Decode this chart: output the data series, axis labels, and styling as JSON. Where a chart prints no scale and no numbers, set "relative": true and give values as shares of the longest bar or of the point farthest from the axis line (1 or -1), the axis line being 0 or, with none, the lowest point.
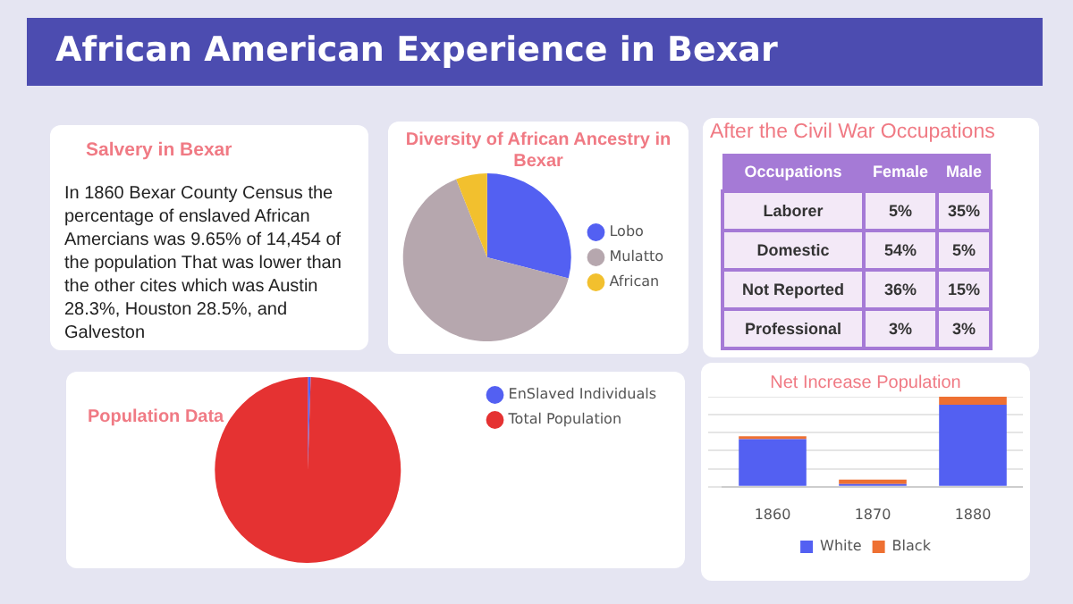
{
  "chart_data": [
    {
      "type": "other",
      "title": "African American Experience in Bexar"
    },
    {
      "type": "other",
      "title": "Salvery in Bexar",
      "annotations": [
        "In 1860 Bexar County Census the percentage of enslaved African Amercians was 9.65% of 14,454 of the population That was lower than the other cites which was Austin 28.3%, Houston 28.5%, and Galveston"
      ]
    },
    {
      "type": "pie",
      "title": "Diversity of African Ancestry in Bexar",
      "categories": [
        "Lobo",
        "Mulatto",
        "African"
      ],
      "values": [
        29,
        65,
        6
      ],
      "colors": [
        "#5360f2",
        "#b6a7ae",
        "#f2c02e"
      ],
      "legend": "right"
    },
    {
      "type": "other",
      "title": "After the Civil War Occupations",
      "xlabel": "Occupations",
      "categories": [
        "Laborer",
        "Domestic",
        "Not Reported",
        "Professional"
      ],
      "series": [
        {
          "name": "Female",
          "values": [
            5,
            54,
            36,
            3
          ],
          "value_labels": [
            "5%",
            "54%",
            "36%",
            "3%"
          ]
        },
        {
          "name": "Male",
          "values": [
            35,
            5,
            15,
            3
          ],
          "value_labels": [
            "35%",
            "5%",
            "15%",
            "3%"
          ]
        }
      ]
    },
    {
      "type": "pie",
      "title": "Population Data",
      "categories": [
        "EnSlaved Individuals",
        "Total Population"
      ],
      "values": [
        0.5,
        99.5
      ],
      "colors": [
        "#5360f2",
        "#e53232"
      ],
      "legend": "top right"
    },
    {
      "type": "bar",
      "title": "Net Increase Population",
      "categories": [
        "1860",
        "1870",
        "1880"
      ],
      "stacked": true,
      "relative": true,
      "grid": "y",
      "legend": "bottom",
      "series": [
        {
          "name": "White",
          "color": "#5360f2",
          "values": [
            0.53,
            0.03,
            0.91
          ]
        },
        {
          "name": "Black",
          "color": "#ee7032",
          "values": [
            0.03,
            0.05,
            0.09
          ]
        }
      ]
    }
  ]
}
